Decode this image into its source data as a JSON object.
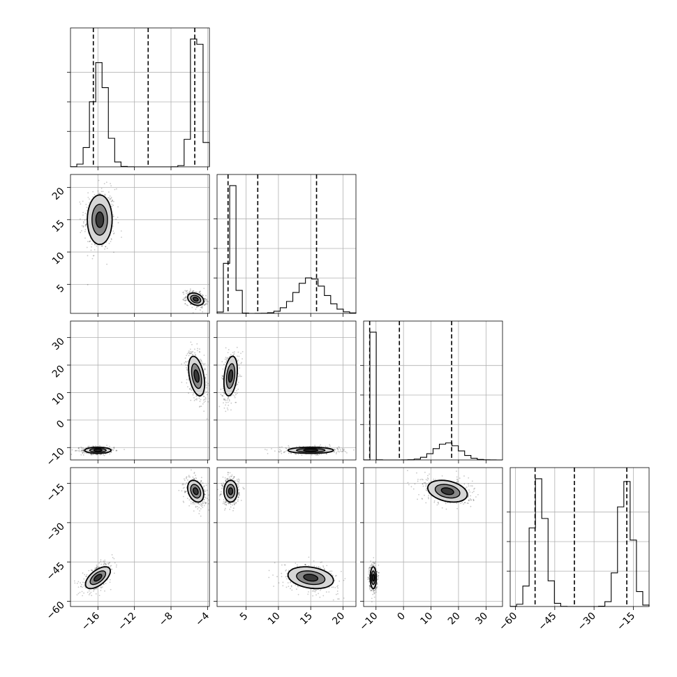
{
  "chart_data": {
    "type": "corner",
    "n_params": 4,
    "grid": true,
    "params": [
      {
        "ticks": [
          -16,
          -12,
          -8,
          -4
        ],
        "tick_labels": [
          "−16",
          "−12",
          "−8",
          "−4"
        ],
        "range": [
          -19,
          -3.8
        ],
        "modes": [
          {
            "mean": -15.8,
            "sd": 0.8,
            "w": 0.5
          },
          {
            "mean": -5.2,
            "sd": 0.55,
            "w": 0.5
          }
        ],
        "quantiles": [
          -16.5,
          -10.5,
          -5.4
        ]
      },
      {
        "ticks": [
          5,
          10,
          15,
          20
        ],
        "tick_labels": [
          "5",
          "10",
          "15",
          "20"
        ],
        "range": [
          0.5,
          22
        ],
        "modes": [
          {
            "mean": 2.8,
            "sd": 0.6,
            "w": 0.5
          },
          {
            "mean": 15,
            "sd": 2.2,
            "w": 0.5
          }
        ],
        "quantiles": [
          2.2,
          6.8,
          15.9
        ]
      },
      {
        "ticks": [
          -10,
          0,
          10,
          20,
          30
        ],
        "tick_labels": [
          "−10",
          "0",
          "10",
          "20",
          "30"
        ],
        "range": [
          -14.5,
          36
        ],
        "modes": [
          {
            "mean": -11,
            "sd": 0.6,
            "w": 0.5
          },
          {
            "mean": 16,
            "sd": 4.5,
            "w": 0.5
          }
        ],
        "quantiles": [
          -12.3,
          -1.5,
          17.5
        ]
      },
      {
        "ticks": [
          -60,
          -45,
          -30,
          -15
        ],
        "tick_labels": [
          "−60",
          "−45",
          "−30",
          "−15"
        ],
        "range": [
          -62,
          -9
        ],
        "modes": [
          {
            "mean": -51,
            "sd": 2.6,
            "w": 0.5
          },
          {
            "mean": -18,
            "sd": 2.6,
            "w": 0.5
          }
        ],
        "quantiles": [
          -52.5,
          -37.5,
          -17.5
        ]
      }
    ],
    "pairs": [
      {
        "row": 1,
        "col": 0,
        "blobs": [
          {
            "mx": -15.8,
            "my": 15,
            "sx": 0.85,
            "sy": 2.4,
            "r": 0,
            "w": 0.5
          },
          {
            "mx": -5.3,
            "my": 2.7,
            "sx": 0.55,
            "sy": 0.6,
            "r": -0.3,
            "w": 0.5
          }
        ]
      },
      {
        "row": 2,
        "col": 0,
        "blobs": [
          {
            "mx": -16,
            "my": -11,
            "sx": 0.9,
            "sy": 0.7,
            "r": 0,
            "w": 0.5
          },
          {
            "mx": -5.2,
            "my": 16,
            "sx": 0.55,
            "sy": 4.5,
            "r": -0.4,
            "w": 0.5
          }
        ]
      },
      {
        "row": 2,
        "col": 1,
        "blobs": [
          {
            "mx": 2.6,
            "my": 16,
            "sx": 0.65,
            "sy": 4.5,
            "r": 0.3,
            "w": 0.5
          },
          {
            "mx": 15,
            "my": -11,
            "sx": 2.2,
            "sy": 0.7,
            "r": 0,
            "w": 0.5
          }
        ]
      },
      {
        "row": 3,
        "col": 0,
        "blobs": [
          {
            "mx": -16,
            "my": -51,
            "sx": 0.85,
            "sy": 2.6,
            "r": 0.6,
            "w": 0.5
          },
          {
            "mx": -5.3,
            "my": -18,
            "sx": 0.55,
            "sy": 2.6,
            "r": -0.3,
            "w": 0.5
          }
        ]
      },
      {
        "row": 3,
        "col": 1,
        "blobs": [
          {
            "mx": 2.6,
            "my": -18,
            "sx": 0.65,
            "sy": 2.6,
            "r": 0,
            "w": 0.5
          },
          {
            "mx": 15,
            "my": -51,
            "sx": 2.2,
            "sy": 2.6,
            "r": -0.25,
            "w": 0.5
          }
        ]
      },
      {
        "row": 3,
        "col": 2,
        "blobs": [
          {
            "mx": 16,
            "my": -18,
            "sx": 4.5,
            "sy": 2.6,
            "r": -0.3,
            "w": 0.5
          },
          {
            "mx": -11,
            "my": -51,
            "sx": 0.7,
            "sy": 2.6,
            "r": 0,
            "w": 0.5
          }
        ]
      }
    ]
  }
}
